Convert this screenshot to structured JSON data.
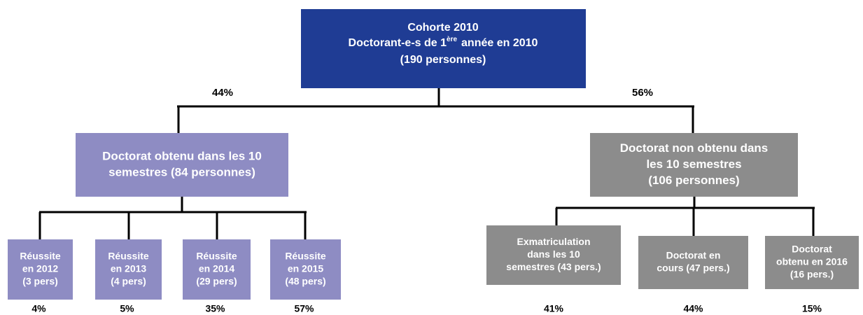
{
  "root": {
    "title": "Cohorte 2010",
    "line2_start": "Doctorant-e-s de 1",
    "line2_sup": "ère",
    "line2_end": "année en 2010",
    "line3": "(190 personnes)"
  },
  "branches": [
    {
      "percent": "44%",
      "lines": [
        "Doctorat obtenu dans les 10",
        "semestres (84 personnes)"
      ],
      "children": [
        {
          "lines": [
            "Réussite",
            "en 2012",
            "(3 pers)"
          ],
          "percent": "4%"
        },
        {
          "lines": [
            "Réussite",
            "en 2013",
            "(4 pers)"
          ],
          "percent": "5%"
        },
        {
          "lines": [
            "Réussite",
            "en 2014",
            "(29 pers)"
          ],
          "percent": "35%"
        },
        {
          "lines": [
            "Réussite",
            "en 2015",
            "(48 pers)"
          ],
          "percent": "57%"
        }
      ]
    },
    {
      "percent": "56%",
      "lines": [
        "Doctorat non obtenu dans",
        "les 10 semestres",
        "(106 personnes)"
      ],
      "children": [
        {
          "lines": [
            "Exmatriculation",
            "dans les 10",
            "semestres (43 pers.)"
          ],
          "percent": "41%"
        },
        {
          "lines": [
            "Doctorat en",
            "cours (47 pers.)"
          ],
          "percent": "44%"
        },
        {
          "lines": [
            "Doctorat",
            "obtenu en 2016",
            "(16 pers.)"
          ],
          "percent": "15%"
        }
      ]
    }
  ]
}
